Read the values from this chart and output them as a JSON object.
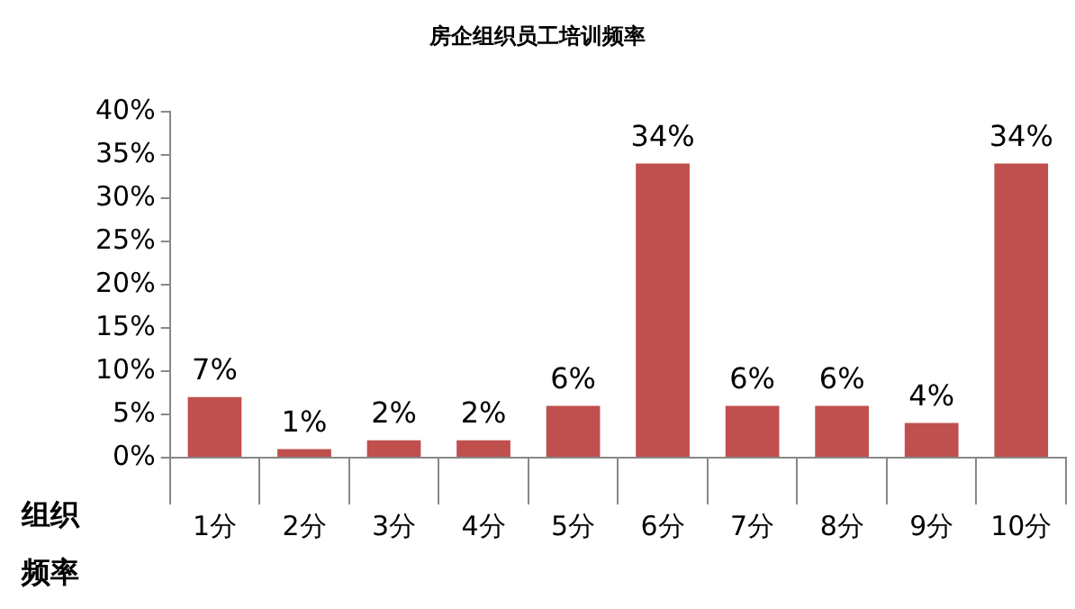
{
  "chart_data": {
    "type": "bar",
    "title": "房企组织员工培训频率",
    "xlabel": "组织频率",
    "categories": [
      "1分",
      "2分",
      "3分",
      "4分",
      "5分",
      "6分",
      "7分",
      "8分",
      "9分",
      "10分"
    ],
    "series": [
      {
        "color": "#c0504d",
        "values": [
          7,
          1,
          2,
          2,
          6,
          34,
          6,
          6,
          4,
          34
        ],
        "value_labels": [
          "7%",
          "1%",
          "2%",
          "2%",
          "6%",
          "34%",
          "6%",
          "6%",
          "4%",
          "34%"
        ]
      }
    ],
    "ylim": [
      0,
      40
    ],
    "yticks": [
      {
        "value": 0,
        "label": "0%"
      },
      {
        "value": 5,
        "label": "5%"
      },
      {
        "value": 10,
        "label": "10%"
      },
      {
        "value": 15,
        "label": "15%"
      },
      {
        "value": 20,
        "label": "20%"
      },
      {
        "value": 25,
        "label": "25%"
      },
      {
        "value": 30,
        "label": "30%"
      },
      {
        "value": 35,
        "label": "35%"
      },
      {
        "value": 40,
        "label": "40%"
      }
    ],
    "grid": false,
    "legend": false
  }
}
